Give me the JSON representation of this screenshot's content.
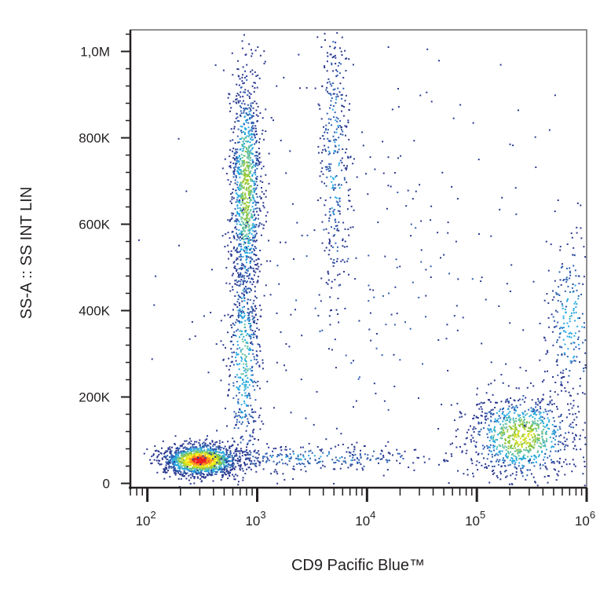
{
  "chart_data": {
    "type": "scatter",
    "subtype": "flow-cytometry density dot plot",
    "xlabel": "CD9 Pacific Blue™",
    "ylabel": "SS-A :: SS INT LIN",
    "x_scale": "log",
    "y_scale": "linear",
    "xlim": [
      70,
      1000000
    ],
    "ylim": [
      -10000,
      1050000
    ],
    "x_ticks": [
      {
        "value": 100,
        "base": "10",
        "exp": "2"
      },
      {
        "value": 1000,
        "base": "10",
        "exp": "3"
      },
      {
        "value": 10000,
        "base": "10",
        "exp": "4"
      },
      {
        "value": 100000,
        "base": "10",
        "exp": "5"
      },
      {
        "value": 1000000,
        "base": "10",
        "exp": "6"
      }
    ],
    "y_ticks": [
      {
        "value": 0,
        "label": "0"
      },
      {
        "value": 200000,
        "label": "200K"
      },
      {
        "value": 400000,
        "label": "400K"
      },
      {
        "value": 600000,
        "label": "600K"
      },
      {
        "value": 800000,
        "label": "800K"
      },
      {
        "value": 1000000,
        "label": "1,0M"
      }
    ],
    "density_colormap": [
      "#2b3990",
      "#2e5fb0",
      "#27a9e1",
      "#62c0a0",
      "#8dc63f",
      "#d7e021",
      "#fcee21",
      "#f7941d",
      "#ed1c24"
    ],
    "grid": false,
    "populations": [
      {
        "center_x": 300,
        "center_y": 55000,
        "spread_log_x": 0.17,
        "spread_y": 18000,
        "weight": 0.28,
        "peak": 1.0
      },
      {
        "center_x": 780,
        "center_y": 680000,
        "spread_log_x": 0.07,
        "spread_y": 140000,
        "weight": 0.2,
        "peak": 0.55
      },
      {
        "center_x": 750,
        "center_y": 300000,
        "spread_log_x": 0.08,
        "spread_y": 150000,
        "weight": 0.1,
        "peak": 0.35
      },
      {
        "center_x": 5000,
        "center_y": 750000,
        "spread_log_x": 0.07,
        "spread_y": 190000,
        "weight": 0.07,
        "peak": 0.25
      },
      {
        "center_x": 250000,
        "center_y": 110000,
        "spread_log_x": 0.25,
        "spread_y": 50000,
        "weight": 0.18,
        "peak": 0.6
      },
      {
        "center_x": 700000,
        "center_y": 380000,
        "spread_log_x": 0.12,
        "spread_y": 110000,
        "weight": 0.05,
        "peak": 0.3
      },
      {
        "center_x": 3000,
        "center_y": 60000,
        "spread_log_x": 0.7,
        "spread_y": 15000,
        "weight": 0.06,
        "peak": 0.25
      },
      {
        "center_x": 10000,
        "center_y": 450000,
        "spread_log_x": 0.9,
        "spread_y": 300000,
        "weight": 0.06,
        "peak": 0.12
      }
    ]
  }
}
